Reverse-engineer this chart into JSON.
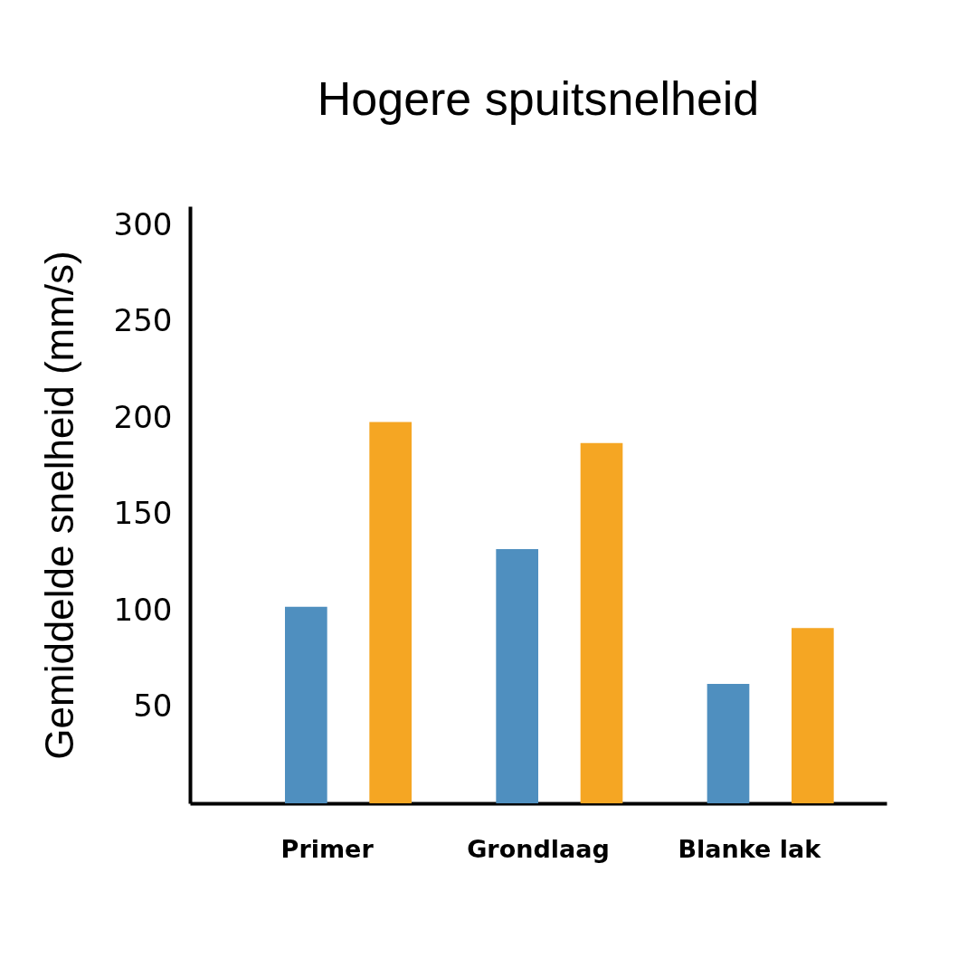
{
  "chart_data": {
    "type": "bar",
    "title": "Hogere spuitsnelheid",
    "ylabel": "Gemiddelde snelheid (mm/s)",
    "categories": [
      "Primer",
      "Grondlaag",
      "Blanke lak"
    ],
    "series": [
      {
        "color": "#4f8fbf",
        "values": [
          102,
          132,
          62
        ]
      },
      {
        "color": "#f5a623",
        "values": [
          198,
          187,
          91
        ]
      }
    ],
    "ylim": [
      0,
      310
    ],
    "yticks": [
      50,
      100,
      150,
      200,
      250,
      300
    ],
    "grid": false,
    "legend": false
  }
}
